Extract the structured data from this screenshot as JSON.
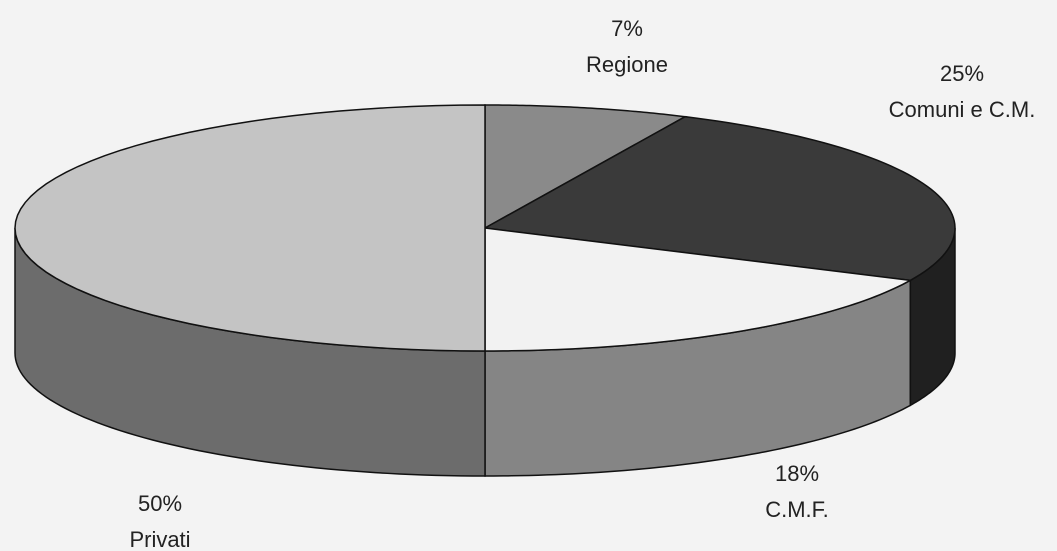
{
  "chart_data": {
    "type": "pie3d",
    "categories": [
      "Regione",
      "Comuni e C.M.",
      "C.M.F.",
      "Privati"
    ],
    "values": [
      7,
      25,
      18,
      50
    ],
    "value_labels": [
      "7%",
      "25%",
      "18%",
      "50%"
    ],
    "colors": [
      "#8a8a8a",
      "#3a3a3a",
      "#f2f2f2",
      "#c4c4c4"
    ]
  }
}
